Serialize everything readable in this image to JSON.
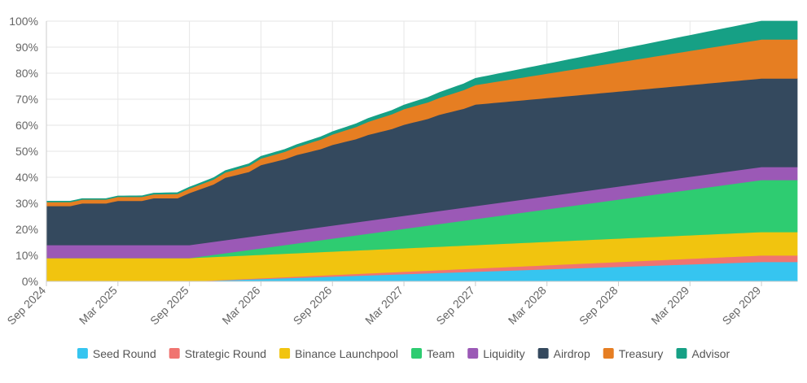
{
  "chart_data": {
    "type": "area",
    "stacked": true,
    "title": "",
    "xlabel": "",
    "ylabel": "",
    "ylim": [
      0,
      100
    ],
    "y_ticks": [
      "0%",
      "10%",
      "20%",
      "30%",
      "40%",
      "50%",
      "60%",
      "70%",
      "80%",
      "90%",
      "100%"
    ],
    "x_ticks": [
      "Sep 2024",
      "Mar 2025",
      "Sep 2025",
      "Mar 2026",
      "Sep 2026",
      "Mar 2027",
      "Sep 2027",
      "Mar 2028",
      "Sep 2028",
      "Mar 2029",
      "Sep 2029"
    ],
    "x_months": [
      0,
      6,
      12,
      18,
      24,
      30,
      36,
      42,
      48,
      54,
      60
    ],
    "x_range_months": [
      0,
      63
    ],
    "grid": true,
    "legend_position": "bottom",
    "series": [
      {
        "name": "Seed Round",
        "color": "#36c5f0",
        "points": [
          [
            0,
            0
          ],
          [
            12,
            0
          ],
          [
            60,
            7.5
          ],
          [
            63,
            7.5
          ]
        ]
      },
      {
        "name": "Strategic Round",
        "color": "#f07470",
        "points": [
          [
            0,
            0
          ],
          [
            12,
            0
          ],
          [
            60,
            2.5
          ],
          [
            63,
            2.5
          ]
        ]
      },
      {
        "name": "Binance Launchpool",
        "color": "#f1c40f",
        "points": [
          [
            0,
            9
          ],
          [
            12,
            9
          ],
          [
            60,
            9
          ],
          [
            63,
            9
          ]
        ]
      },
      {
        "name": "Team",
        "color": "#2ecc71",
        "points": [
          [
            0,
            0
          ],
          [
            12,
            0
          ],
          [
            60,
            20
          ],
          [
            63,
            20
          ]
        ]
      },
      {
        "name": "Liquidity",
        "color": "#9b59b6",
        "points": [
          [
            0,
            5
          ],
          [
            12,
            5
          ],
          [
            60,
            5
          ],
          [
            63,
            5
          ]
        ]
      },
      {
        "name": "Airdrop",
        "color": "#34495e",
        "points": [
          [
            0,
            15
          ],
          [
            2,
            15
          ],
          [
            3,
            16
          ],
          [
            5,
            16
          ],
          [
            6,
            17
          ],
          [
            8,
            17
          ],
          [
            9,
            18
          ],
          [
            11,
            18
          ],
          [
            12,
            20
          ],
          [
            14,
            22
          ],
          [
            15,
            24
          ],
          [
            17,
            25
          ],
          [
            18,
            27
          ],
          [
            20,
            28
          ],
          [
            21,
            29
          ],
          [
            23,
            30
          ],
          [
            24,
            31
          ],
          [
            26,
            32
          ],
          [
            27,
            33
          ],
          [
            29,
            34
          ],
          [
            30,
            35
          ],
          [
            32,
            36
          ],
          [
            33,
            37
          ],
          [
            35,
            38
          ],
          [
            36,
            39
          ],
          [
            60,
            34
          ],
          [
            63,
            34
          ]
        ]
      },
      {
        "name": "Treasury",
        "color": "#e67e22",
        "points": [
          [
            0,
            1.5
          ],
          [
            2,
            1.5
          ],
          [
            3,
            1.5
          ],
          [
            6,
            1.5
          ],
          [
            9,
            1.5
          ],
          [
            12,
            1.7
          ],
          [
            15,
            2
          ],
          [
            18,
            2.5
          ],
          [
            21,
            3
          ],
          [
            24,
            4
          ],
          [
            27,
            5
          ],
          [
            30,
            6
          ],
          [
            33,
            6.5
          ],
          [
            36,
            7.5
          ],
          [
            60,
            15
          ],
          [
            63,
            15
          ]
        ]
      },
      {
        "name": "Advisor",
        "color": "#16a085",
        "points": [
          [
            0,
            0.3
          ],
          [
            6,
            0.3
          ],
          [
            12,
            0.5
          ],
          [
            18,
            0.8
          ],
          [
            24,
            1
          ],
          [
            30,
            1.5
          ],
          [
            36,
            2.5
          ],
          [
            60,
            7
          ],
          [
            63,
            7
          ]
        ]
      }
    ]
  }
}
